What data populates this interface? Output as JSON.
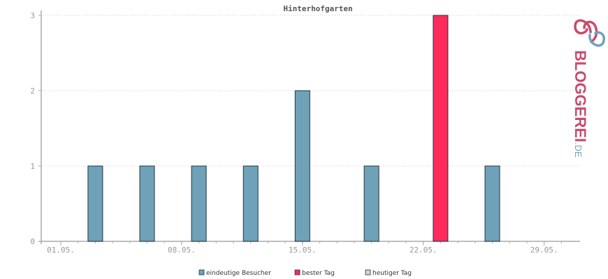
{
  "chart_data": {
    "type": "bar",
    "title": "Hinterhofgarten",
    "xlabel": "",
    "ylabel": "",
    "ylim": [
      0,
      3
    ],
    "yticks": [
      0,
      1,
      2,
      3
    ],
    "grid": true,
    "legend_position": "bottom-center",
    "x_tick_labels": [
      "01.05.",
      "08.05.",
      "15.05.",
      "22.05.",
      "29.05."
    ],
    "categories": [
      "01.05.",
      "02.05.",
      "03.05.",
      "04.05.",
      "05.05.",
      "06.05.",
      "07.05.",
      "08.05.",
      "09.05.",
      "10.05.",
      "11.05.",
      "12.05.",
      "13.05.",
      "14.05.",
      "15.05.",
      "16.05.",
      "17.05.",
      "18.05.",
      "19.05.",
      "20.05.",
      "21.05.",
      "22.05.",
      "23.05.",
      "24.05.",
      "25.05.",
      "26.05.",
      "27.05.",
      "28.05.",
      "29.05.",
      "30.05."
    ],
    "bars": [
      {
        "date": "03.05.",
        "value": 1,
        "kind": "eindeutige Besucher"
      },
      {
        "date": "06.05.",
        "value": 1,
        "kind": "eindeutige Besucher"
      },
      {
        "date": "09.05.",
        "value": 1,
        "kind": "eindeutige Besucher"
      },
      {
        "date": "12.05.",
        "value": 1,
        "kind": "eindeutige Besucher"
      },
      {
        "date": "15.05.",
        "value": 2,
        "kind": "eindeutige Besucher"
      },
      {
        "date": "19.05.",
        "value": 1,
        "kind": "eindeutige Besucher"
      },
      {
        "date": "23.05.",
        "value": 3,
        "kind": "bester Tag"
      },
      {
        "date": "26.05.",
        "value": 1,
        "kind": "eindeutige Besucher"
      }
    ],
    "legend": [
      {
        "name": "eindeutige Besucher",
        "color": "#6fa2b8"
      },
      {
        "name": "bester Tag",
        "color": "#ff2a5c"
      },
      {
        "name": "heutiger Tag",
        "color": "#d3d3d3"
      }
    ]
  },
  "logo": {
    "text": "BLOGGEREI",
    "suffix": ".DE",
    "color_main": "#c94a6b",
    "color_secondary": "#6fa2b8"
  }
}
